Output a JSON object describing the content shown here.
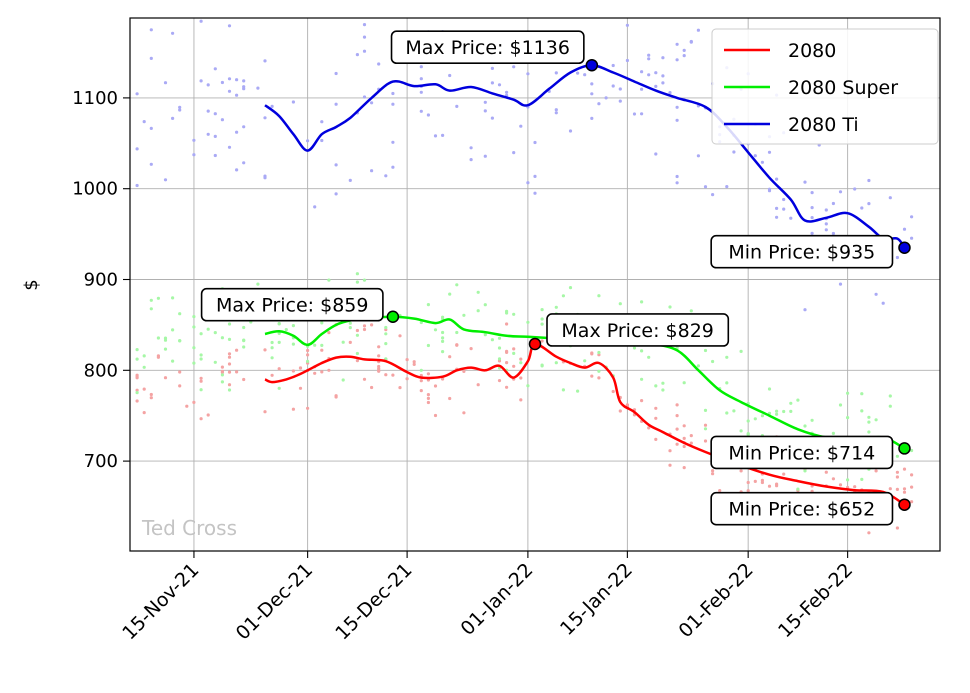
{
  "chart_data": {
    "type": "line",
    "title": "",
    "xlabel": "",
    "ylabel": "$",
    "xlim": [
      "2021-11-06",
      "2022-02-28"
    ],
    "ylim": [
      601,
      1188
    ],
    "grid": true,
    "legend_position": "top-right",
    "watermark": "Ted Cross",
    "x_ticks": [
      {
        "date": "2021-11-15",
        "label": "15-Nov-21"
      },
      {
        "date": "2021-12-01",
        "label": "01-Dec-21"
      },
      {
        "date": "2021-12-15",
        "label": "15-Dec-21"
      },
      {
        "date": "2022-01-01",
        "label": "01-Jan-22"
      },
      {
        "date": "2022-01-15",
        "label": "15-Jan-22"
      },
      {
        "date": "2022-02-01",
        "label": "01-Feb-22"
      },
      {
        "date": "2022-02-15",
        "label": "15-Feb-22"
      }
    ],
    "y_ticks": [
      700,
      800,
      900,
      1000,
      1100
    ],
    "series": [
      {
        "name": "2080",
        "color": "#ff0000",
        "scatter_color": "#f4a3a3",
        "points": [
          [
            "2021-11-25",
            790
          ],
          [
            "2021-11-26",
            787
          ],
          [
            "2021-11-28",
            790
          ],
          [
            "2021-11-30",
            796
          ],
          [
            "2021-12-03",
            808
          ],
          [
            "2021-12-05",
            814
          ],
          [
            "2021-12-07",
            815
          ],
          [
            "2021-12-09",
            812
          ],
          [
            "2021-12-12",
            810
          ],
          [
            "2021-12-15",
            798
          ],
          [
            "2021-12-17",
            792
          ],
          [
            "2021-12-20",
            793
          ],
          [
            "2021-12-22",
            800
          ],
          [
            "2021-12-24",
            803
          ],
          [
            "2021-12-26",
            800
          ],
          [
            "2021-12-28",
            805
          ],
          [
            "2021-12-30",
            792
          ],
          [
            "2022-01-01",
            810
          ],
          [
            "2022-01-02",
            829
          ],
          [
            "2022-01-05",
            815
          ],
          [
            "2022-01-07",
            808
          ],
          [
            "2022-01-09",
            803
          ],
          [
            "2022-01-11",
            808
          ],
          [
            "2022-01-13",
            792
          ],
          [
            "2022-01-14",
            765
          ],
          [
            "2022-01-16",
            754
          ],
          [
            "2022-01-18",
            740
          ],
          [
            "2022-01-20",
            732
          ],
          [
            "2022-01-23",
            720
          ],
          [
            "2022-01-26",
            710
          ],
          [
            "2022-01-30",
            698
          ],
          [
            "2022-02-04",
            685
          ],
          [
            "2022-02-08",
            678
          ],
          [
            "2022-02-12",
            672
          ],
          [
            "2022-02-16",
            668
          ],
          [
            "2022-02-20",
            666
          ],
          [
            "2022-02-23",
            652
          ]
        ],
        "annotations": [
          {
            "label": "Max Price: $829",
            "date": "2022-01-02",
            "value": 829
          },
          {
            "label": "Min Price: $652",
            "date": "2022-02-23",
            "value": 652
          }
        ]
      },
      {
        "name": "2080 Super",
        "color": "#00ee00",
        "scatter_color": "#a6f7a6",
        "points": [
          [
            "2021-11-25",
            840
          ],
          [
            "2021-11-27",
            843
          ],
          [
            "2021-11-29",
            838
          ],
          [
            "2021-12-01",
            828
          ],
          [
            "2021-12-03",
            840
          ],
          [
            "2021-12-05",
            850
          ],
          [
            "2021-12-07",
            855
          ],
          [
            "2021-12-09",
            857
          ],
          [
            "2021-12-13",
            859
          ],
          [
            "2021-12-16",
            857
          ],
          [
            "2021-12-19",
            852
          ],
          [
            "2021-12-21",
            856
          ],
          [
            "2021-12-23",
            845
          ],
          [
            "2021-12-26",
            842
          ],
          [
            "2021-12-29",
            838
          ],
          [
            "2022-01-01",
            837
          ],
          [
            "2022-01-05",
            835
          ],
          [
            "2022-01-10",
            833
          ],
          [
            "2022-01-14",
            835
          ],
          [
            "2022-01-18",
            830
          ],
          [
            "2022-01-22",
            822
          ],
          [
            "2022-01-25",
            800
          ],
          [
            "2022-01-28",
            778
          ],
          [
            "2022-01-31",
            765
          ],
          [
            "2022-02-04",
            750
          ],
          [
            "2022-02-08",
            735
          ],
          [
            "2022-02-12",
            726
          ],
          [
            "2022-02-16",
            724
          ],
          [
            "2022-02-20",
            726
          ],
          [
            "2022-02-23",
            714
          ]
        ],
        "annotations": [
          {
            "label": "Max Price: $859",
            "date": "2021-12-13",
            "value": 859
          },
          {
            "label": "Min Price: $714",
            "date": "2022-02-23",
            "value": 714
          }
        ]
      },
      {
        "name": "2080 Ti",
        "color": "#0000dd",
        "scatter_color": "#aaaaf5",
        "points": [
          [
            "2021-11-25",
            1092
          ],
          [
            "2021-11-27",
            1080
          ],
          [
            "2021-11-29",
            1060
          ],
          [
            "2021-12-01",
            1042
          ],
          [
            "2021-12-03",
            1060
          ],
          [
            "2021-12-05",
            1068
          ],
          [
            "2021-12-07",
            1078
          ],
          [
            "2021-12-10",
            1100
          ],
          [
            "2021-12-13",
            1118
          ],
          [
            "2021-12-16",
            1113
          ],
          [
            "2021-12-19",
            1115
          ],
          [
            "2021-12-21",
            1108
          ],
          [
            "2021-12-24",
            1112
          ],
          [
            "2021-12-27",
            1105
          ],
          [
            "2021-12-30",
            1098
          ],
          [
            "2022-01-01",
            1092
          ],
          [
            "2022-01-04",
            1110
          ],
          [
            "2022-01-07",
            1128
          ],
          [
            "2022-01-10",
            1136
          ],
          [
            "2022-01-13",
            1128
          ],
          [
            "2022-01-16",
            1118
          ],
          [
            "2022-01-19",
            1108
          ],
          [
            "2022-01-22",
            1100
          ],
          [
            "2022-01-26",
            1090
          ],
          [
            "2022-01-29",
            1068
          ],
          [
            "2022-02-01",
            1040
          ],
          [
            "2022-02-04",
            1012
          ],
          [
            "2022-02-07",
            988
          ],
          [
            "2022-02-09",
            965
          ],
          [
            "2022-02-12",
            968
          ],
          [
            "2022-02-15",
            973
          ],
          [
            "2022-02-18",
            958
          ],
          [
            "2022-02-20",
            945
          ],
          [
            "2022-02-22",
            945
          ],
          [
            "2022-02-23",
            935
          ]
        ],
        "annotations": [
          {
            "label": "Max Price: $1136",
            "date": "2022-01-10",
            "value": 1136
          },
          {
            "label": "Min Price: $935",
            "date": "2022-02-23",
            "value": 935
          }
        ]
      }
    ]
  }
}
